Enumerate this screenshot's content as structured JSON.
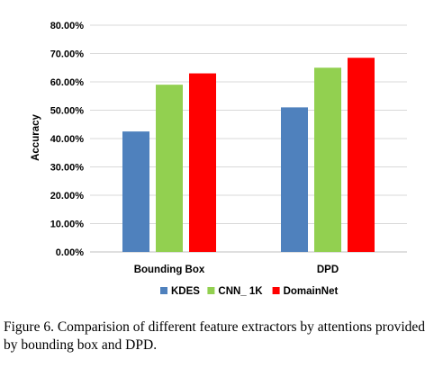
{
  "chart_data": {
    "type": "bar",
    "categories": [
      "Bounding Box",
      "DPD"
    ],
    "series": [
      {
        "name": "KDES",
        "values": [
          42.5,
          51.0
        ],
        "color": "#4f81bd"
      },
      {
        "name": "CNN_ 1K",
        "values": [
          59.0,
          65.0
        ],
        "color": "#92d050"
      },
      {
        "name": "DomainNet",
        "values": [
          63.0,
          68.5
        ],
        "color": "#ff0000"
      }
    ],
    "ylabel": "Accuracy",
    "ylim": [
      0,
      80
    ],
    "yticks": [
      "0.00%",
      "10.00%",
      "20.00%",
      "30.00%",
      "40.00%",
      "50.00%",
      "60.00%",
      "70.00%",
      "80.00%"
    ],
    "grid": true,
    "legend_position": "bottom"
  },
  "caption": "Figure 6. Comparision of different feature extractors by attentions provided by bounding box and DPD."
}
